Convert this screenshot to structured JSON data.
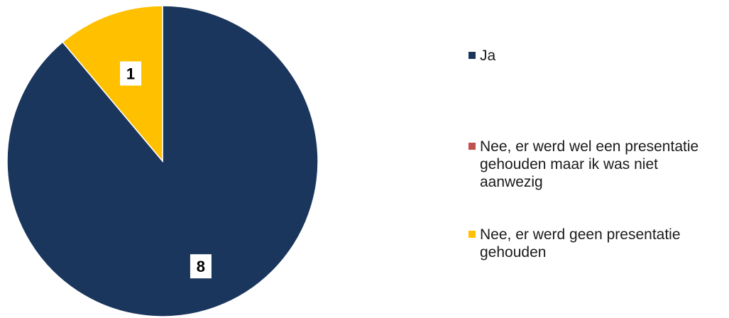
{
  "chart_data": {
    "type": "pie",
    "categories": [
      "Ja",
      "Nee, er werd wel een presentatie gehouden maar ik was niet aanwezig",
      "Nee, er werd geen presentatie gehouden"
    ],
    "values": [
      8,
      0,
      1
    ],
    "data_labels": [
      "8",
      "",
      "1"
    ],
    "colors": [
      "#1b365d",
      "#c0504d",
      "#ffc000"
    ],
    "legend_placement": "right"
  }
}
